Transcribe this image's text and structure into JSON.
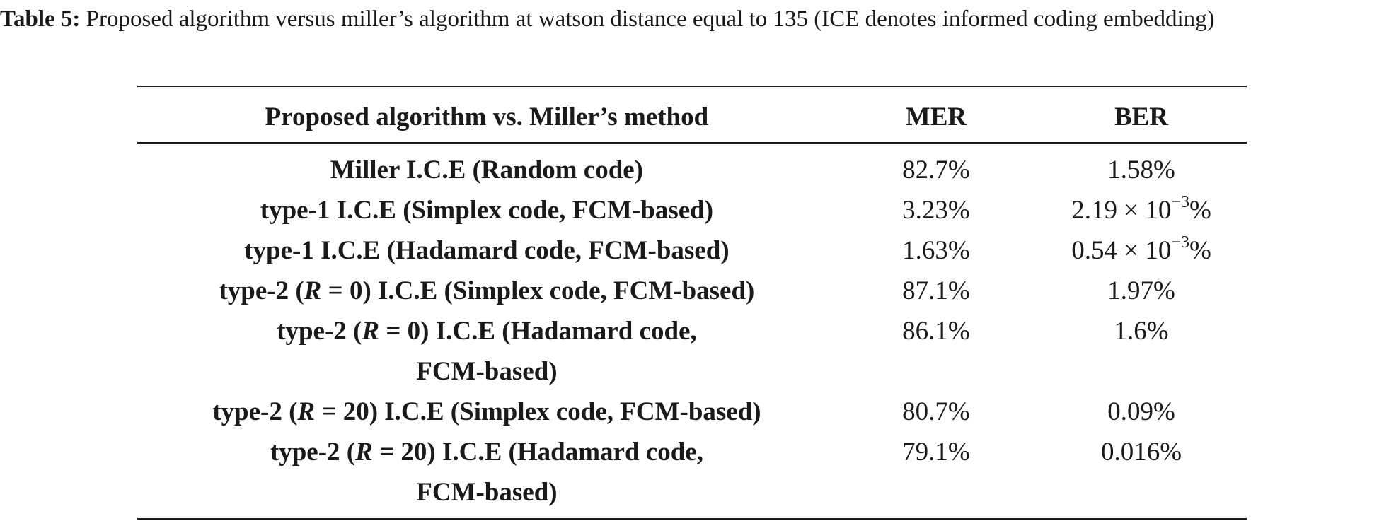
{
  "caption": {
    "label": "Table 5:",
    "text": "Proposed algorithm versus miller’s algorithm at watson distance equal to 135 (ICE denotes informed coding embedding)"
  },
  "table": {
    "headers": [
      "Proposed algorithm vs. Miller’s method",
      "MER",
      "BER"
    ],
    "rows": [
      {
        "method": [
          "Miller I.C.E (Random code)"
        ],
        "mer": "82.7%",
        "ber": {
          "text": "1.58%"
        }
      },
      {
        "method": [
          "type-1 I.C.E (Simplex code, FCM-based)"
        ],
        "mer": "3.23%",
        "ber": {
          "mantissa": "2.19 × 10",
          "exponent": "−3",
          "unit": "%"
        }
      },
      {
        "method": [
          "type-1 I.C.E (Hadamard code, FCM-based)"
        ],
        "mer": "1.63%",
        "ber": {
          "mantissa": "0.54 × 10",
          "exponent": "−3",
          "unit": "%"
        }
      },
      {
        "method": [
          "type-2 (R = 0) I.C.E (Simplex code, FCM-based)"
        ],
        "mer": "87.1%",
        "ber": {
          "text": "1.97%"
        }
      },
      {
        "method": [
          "type-2 (R = 0) I.C.E (Hadamard code,",
          "FCM-based)"
        ],
        "mer": "86.1%",
        "ber": {
          "text": "1.6%"
        }
      },
      {
        "method": [
          "type-2 (R = 20) I.C.E (Simplex code, FCM-based)"
        ],
        "mer": "80.7%",
        "ber": {
          "text": "0.09%"
        }
      },
      {
        "method": [
          "type-2 (R = 20) I.C.E (Hadamard code,",
          "FCM-based)"
        ],
        "mer": "79.1%",
        "ber": {
          "text": "0.016%"
        }
      }
    ]
  }
}
